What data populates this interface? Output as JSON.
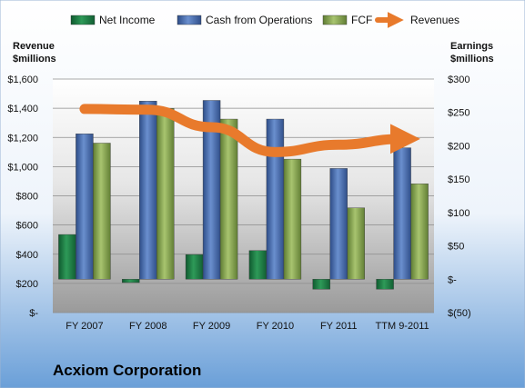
{
  "chart_data": {
    "type": "bar",
    "categories": [
      "FY 2007",
      "FY 2008",
      "FY 2009",
      "FY 2010",
      "FY 2011",
      "TTM 9-2011"
    ],
    "series": [
      {
        "name": "Net Income",
        "axis": "right",
        "color": "#1f8a4c",
        "values": [
          67,
          -5,
          37,
          43,
          -15,
          -15
        ]
      },
      {
        "name": "Cash from Operations",
        "axis": "right",
        "color": "#4a6fb0",
        "values": [
          218,
          267,
          268,
          240,
          166,
          197
        ]
      },
      {
        "name": "FCF",
        "axis": "right",
        "color": "#8bab55",
        "values": [
          204,
          256,
          240,
          180,
          107,
          143
        ]
      },
      {
        "name": "Revenues",
        "axis": "left",
        "type": "line",
        "color": "#e87a2c",
        "values": [
          1395,
          1390,
          1270,
          1100,
          1150,
          1190
        ]
      }
    ],
    "left_axis": {
      "title_lines": [
        "Revenue",
        "$millions"
      ],
      "min": 0,
      "max": 1600,
      "step": 200,
      "tick_labels": [
        "$-",
        "$200",
        "$400",
        "$600",
        "$800",
        "$1,000",
        "$1,200",
        "$1,400",
        "$1,600"
      ]
    },
    "right_axis": {
      "title_lines": [
        "Earnings",
        "$millions"
      ],
      "min": -50,
      "max": 300,
      "step": 50,
      "tick_labels": [
        "$(50)",
        "$-",
        "$50",
        "$100",
        "$150",
        "$200",
        "$250",
        "$300"
      ]
    },
    "legend": {
      "placement": "top"
    },
    "grid": true,
    "company": "Acxiom Corporation"
  }
}
